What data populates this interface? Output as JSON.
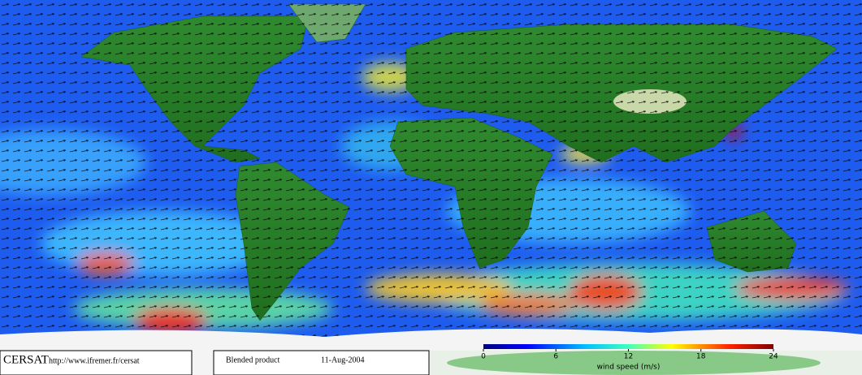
{
  "header": {
    "logo": "CERSAT",
    "url": "http://www.ifremer.fr/cersat",
    "product": "Blended product",
    "date": "11-Aug-2004"
  },
  "colorbar": {
    "lim": [
      0,
      24
    ],
    "ticks": [
      0,
      6,
      12,
      18,
      24
    ],
    "label": "wind speed (m/s)"
  }
}
